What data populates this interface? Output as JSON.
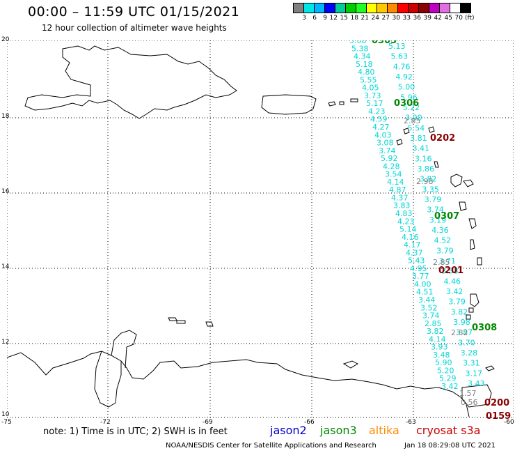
{
  "header": {
    "title": "00:00 – 11:59 UTC 01/15/2021",
    "subtitle": "12 hour collection of altimeter wave heights"
  },
  "legend": {
    "colors": [
      "#808080",
      "#00e5e5",
      "#00b4ff",
      "#0000ff",
      "#00cc99",
      "#00cc00",
      "#22ff22",
      "#ffff00",
      "#ffc800",
      "#ff8c00",
      "#ff0000",
      "#cc0000",
      "#8b0000",
      "#c000c0",
      "#e070e0",
      "#ffffff",
      "#000000"
    ],
    "labels": [
      "3",
      "6",
      "9",
      "12",
      "15",
      "18",
      "21",
      "24",
      "27",
      "30",
      "33",
      "36",
      "39",
      "42",
      "45",
      "70"
    ],
    "unit": "(ft)"
  },
  "axes": {
    "y_labels": [
      "20",
      "18",
      "16",
      "14",
      "12",
      "10"
    ],
    "x_labels": [
      "-75",
      "-72",
      "-69",
      "-66",
      "-63",
      "-60"
    ]
  },
  "passes": {
    "cyan_track_1": [
      "5.08",
      "5.38",
      "4.34",
      "5.18",
      "4.80",
      "5.55",
      "4.05",
      "3.73",
      "5.17",
      "4.23",
      "4.59",
      "4.27",
      "4.03",
      "3.08",
      "3.74",
      "5.92",
      "4.28",
      "3.54",
      "4.14",
      "4.87",
      "4.37",
      "3.83",
      "4.83",
      "4.23",
      "5.14",
      "4.16",
      "4.17",
      "4.37",
      "5.43",
      "4.95",
      "3.77",
      "4.00",
      "4.51",
      "3.44",
      "3.52",
      "3.74",
      "2.85",
      "3.82",
      "4.14",
      "3.93",
      "3.48",
      "5.90",
      "5.20",
      "5.29",
      "3.42"
    ],
    "cyan_track_2": [
      "5.13",
      "5.63",
      "4.76",
      "4.92",
      "5.00",
      "5.96",
      "5.22",
      "3.90",
      "5.54",
      "3.81",
      "3.41",
      "3.16",
      "3.86",
      "3.82",
      "3.35",
      "3.79",
      "3.74",
      "3.19",
      "4.36",
      "4.52",
      "3.79",
      "3.71",
      "3.58",
      "4.46",
      "3.42",
      "3.79",
      "3.82",
      "3.98",
      "3.87",
      "3.70",
      "3.28",
      "3.31",
      "3.17",
      "3.43"
    ],
    "gray_values": [
      "2.85",
      "2.98",
      "2.85",
      "2.82",
      "1.57",
      "0.56"
    ],
    "time_labels": [
      {
        "text": "0305",
        "sat": "jason3"
      },
      {
        "text": "0306",
        "sat": "jason3"
      },
      {
        "text": "0202",
        "sat": "cryosat"
      },
      {
        "text": "0307",
        "sat": "jason3"
      },
      {
        "text": "0201",
        "sat": "cryosat"
      },
      {
        "text": "0308",
        "sat": "jason3"
      },
      {
        "text": "0200",
        "sat": "cryosat"
      },
      {
        "text": "0159",
        "sat": "cryosat"
      }
    ]
  },
  "footer": {
    "note": "note: 1) Time is in UTC; 2) SWH is in feet",
    "satellites": [
      {
        "name": "jason2",
        "color": "#0000cc"
      },
      {
        "name": "jason3",
        "color": "#008800"
      },
      {
        "name": "altika",
        "color": "#ff8c00"
      },
      {
        "name": "cryosat s3a",
        "color": "#cc0000"
      }
    ],
    "credit": "NOAA/NESDIS Center for Satellite Applications and Research",
    "timestamp": "Jan 18 08:29:08 UTC 2021"
  }
}
